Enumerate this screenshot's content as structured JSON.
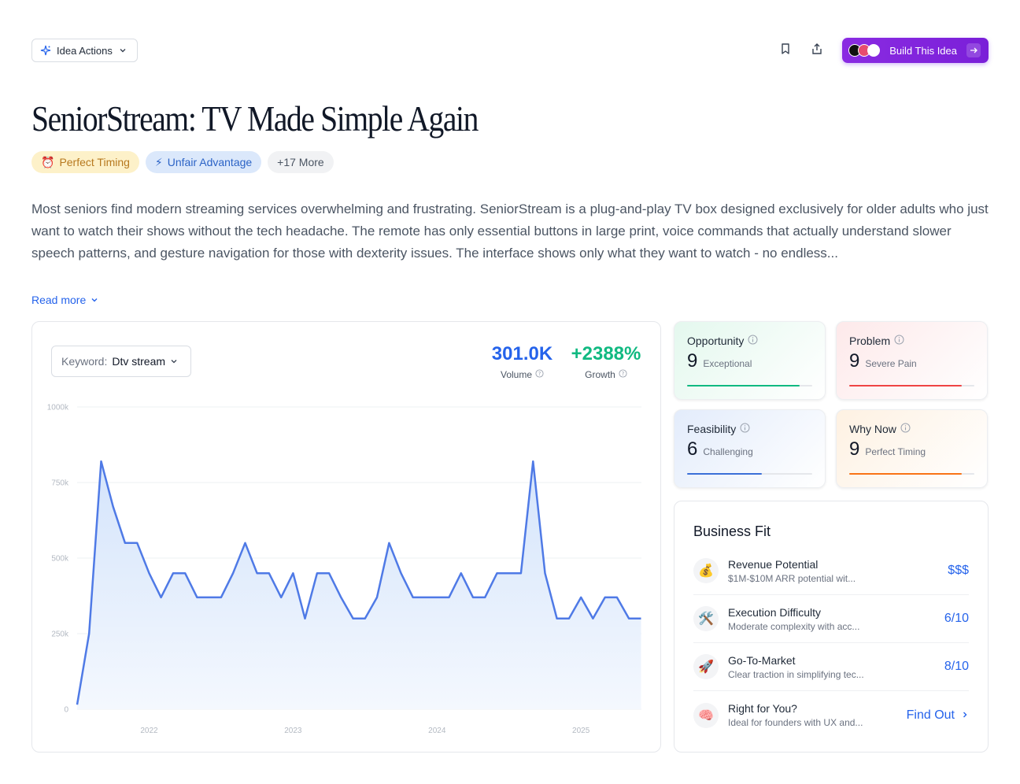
{
  "header": {
    "idea_actions_label": "Idea Actions",
    "build_label": "Build This Idea"
  },
  "title": "SeniorStream: TV Made Simple Again",
  "tags": [
    {
      "icon": "alarm-clock-icon",
      "label": "Perfect Timing",
      "emoji": "⏰"
    },
    {
      "icon": "lightning-icon",
      "label": "Unfair Advantage",
      "emoji": "⚡"
    },
    {
      "label": "+17 More"
    }
  ],
  "description": "Most seniors find modern streaming services overwhelming and frustrating. SeniorStream is a plug-and-play TV box designed exclusively for older adults who just want to watch their shows without the tech headache. The remote has only essential buttons in large print, voice commands that actually understand slower speech patterns, and gesture navigation for those with dexterity issues. The interface shows only what they want to watch - no endless...",
  "read_more_label": "Read more",
  "trend": {
    "keyword_label": "Keyword:",
    "keyword_value": "Dtv stream",
    "volume_value": "301.0K",
    "volume_label": "Volume",
    "growth_value": "+2388%",
    "growth_label": "Growth"
  },
  "chart_data": {
    "type": "area",
    "title": "",
    "xlabel": "",
    "ylabel": "",
    "ylim": [
      0,
      1000000
    ],
    "y_ticks": [
      "0",
      "250k",
      "500k",
      "750k",
      "1000k"
    ],
    "x_ticks": [
      "2022",
      "2023",
      "2024",
      "2025"
    ],
    "x_tick_positions": [
      2022,
      2023,
      2024,
      2025
    ],
    "x_range": [
      2021.5,
      2025.42
    ],
    "series": [
      {
        "x": [
          2021.5,
          2021.583,
          2021.667,
          2021.75,
          2021.833,
          2021.917,
          2022.0,
          2022.083,
          2022.167,
          2022.25,
          2022.333,
          2022.417,
          2022.5,
          2022.583,
          2022.667,
          2022.75,
          2022.833,
          2022.917,
          2023.0,
          2023.083,
          2023.167,
          2023.25,
          2023.333,
          2023.417,
          2023.5,
          2023.583,
          2023.667,
          2023.75,
          2023.833,
          2023.917,
          2024.0,
          2024.083,
          2024.167,
          2024.25,
          2024.333,
          2024.417,
          2024.5,
          2024.583,
          2024.667,
          2024.75,
          2024.833,
          2024.917,
          2025.0,
          2025.083,
          2025.167,
          2025.25,
          2025.333,
          2025.417
        ],
        "values": [
          15000,
          250000,
          820000,
          670000,
          550000,
          550000,
          450000,
          370000,
          450000,
          450000,
          370000,
          370000,
          370000,
          450000,
          550000,
          450000,
          450000,
          370000,
          450000,
          300000,
          450000,
          450000,
          370000,
          300000,
          300000,
          370000,
          550000,
          450000,
          370000,
          370000,
          370000,
          370000,
          450000,
          370000,
          370000,
          450000,
          450000,
          450000,
          820000,
          450000,
          300000,
          300000,
          370000,
          300000,
          370000,
          370000,
          300000,
          300000
        ]
      }
    ],
    "line_color": "#4f7ae6",
    "fill_color_top": "#d4e4fb",
    "fill_color_bottom": "#f4f8fe",
    "grid": true
  },
  "scores": [
    {
      "title": "Opportunity",
      "value": "9",
      "desc": "Exceptional",
      "fill": 0.9,
      "color": "#10b981",
      "bg": "linear-gradient(135deg,#e4f8ee,#ffffff)"
    },
    {
      "title": "Problem",
      "value": "9",
      "desc": "Severe Pain",
      "fill": 0.9,
      "color": "#ef4444",
      "bg": "linear-gradient(135deg,#fde9ea,#ffffff)"
    },
    {
      "title": "Feasibility",
      "value": "6",
      "desc": "Challenging",
      "fill": 0.6,
      "color": "#3b6fd8",
      "bg": "linear-gradient(135deg,#e3ecfb,#ffffff)"
    },
    {
      "title": "Why Now",
      "value": "9",
      "desc": "Perfect Timing",
      "fill": 0.9,
      "color": "#f97316",
      "bg": "linear-gradient(135deg,#fef1e2,#ffffff)"
    }
  ],
  "business_fit": {
    "title": "Business Fit",
    "rows": [
      {
        "icon": "money-bag-icon",
        "emoji": "💰",
        "name": "Revenue Potential",
        "sub": "$1M-$10M ARR potential wit...",
        "value": "$$$"
      },
      {
        "icon": "tools-icon",
        "emoji": "🛠️",
        "name": "Execution Difficulty",
        "sub": "Moderate complexity with acc...",
        "value": "6/10"
      },
      {
        "icon": "rocket-icon",
        "emoji": "🚀",
        "name": "Go-To-Market",
        "sub": "Clear traction in simplifying tec...",
        "value": "8/10"
      },
      {
        "icon": "brain-icon",
        "emoji": "🧠",
        "name": "Right for You?",
        "sub": "Ideal for founders with UX and...",
        "value": "Find Out"
      }
    ]
  },
  "colors": {
    "accent_blue": "#2563eb",
    "growth_green": "#10b981",
    "build_purple": "#7c3aed"
  }
}
